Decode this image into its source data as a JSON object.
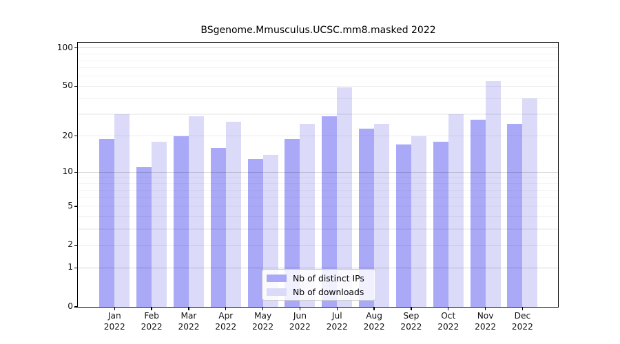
{
  "title": "BSgenome.Mmusculus.UCSC.mm8.masked 2022",
  "legend": {
    "position": "lower center",
    "items": [
      {
        "label": "Nb of distinct IPs",
        "color": "#a9a9f7"
      },
      {
        "label": "Nb of downloads",
        "color": "#dbdbf9"
      }
    ]
  },
  "chart_data": {
    "type": "bar",
    "title": "BSgenome.Mmusculus.UCSC.mm8.masked 2022",
    "categories": [
      "Jan 2022",
      "Feb 2022",
      "Mar 2022",
      "Apr 2022",
      "May 2022",
      "Jun 2022",
      "Jul 2022",
      "Aug 2022",
      "Sep 2022",
      "Oct 2022",
      "Nov 2022",
      "Dec 2022"
    ],
    "month_line1": [
      "Jan",
      "Feb",
      "Mar",
      "Apr",
      "May",
      "Jun",
      "Jul",
      "Aug",
      "Sep",
      "Oct",
      "Nov",
      "Dec"
    ],
    "month_line2": "2022",
    "series": [
      {
        "name": "Nb of distinct IPs",
        "color": "#a9a9f7",
        "values": [
          19,
          11,
          20,
          16,
          13,
          19,
          29,
          23,
          17,
          18,
          27,
          25
        ]
      },
      {
        "name": "Nb of downloads",
        "color": "#dbdbf9",
        "values": [
          30,
          18,
          29,
          26,
          14,
          25,
          49,
          25,
          20,
          30,
          55,
          40
        ]
      }
    ],
    "xlabel": "",
    "ylabel": "",
    "yscale": "log10(1+v)",
    "ylim": [
      0,
      110
    ],
    "yticks": [
      0,
      1,
      2,
      5,
      10,
      20,
      50,
      100
    ],
    "grid": {
      "orientation": "horizontal",
      "minor_lines": [
        3,
        4,
        6,
        7,
        8,
        9,
        30,
        40,
        60,
        70,
        80,
        90
      ],
      "labeled_lines": [
        2,
        5,
        20,
        50
      ],
      "decade_lines": [
        1,
        10,
        100
      ],
      "drawn_over_bars": true
    }
  }
}
